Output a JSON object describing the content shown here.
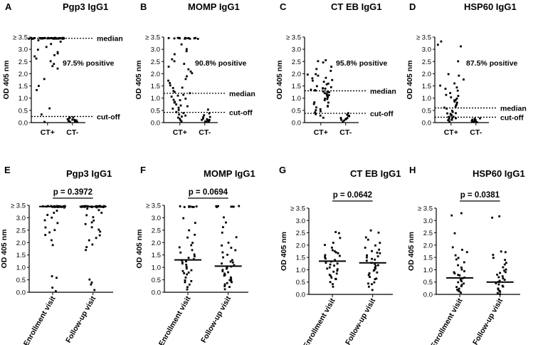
{
  "chart_data": [
    {
      "panel": "A",
      "title": "Pgp3 IgG1",
      "type": "scatter",
      "categories": [
        "CT+",
        "CT-"
      ],
      "ylabel": "OD 405 nm",
      "ylim": [
        0,
        3.5
      ],
      "ytick_labels": [
        "0.0",
        "0.5",
        "1.0",
        "1.5",
        "2.0",
        "2.5",
        "3.0",
        "≥ 3.5"
      ],
      "series": [
        {
          "name": "CT+",
          "values": [
            3.45,
            3.45,
            3.45,
            3.45,
            3.45,
            3.45,
            3.45,
            3.45,
            3.45,
            3.45,
            3.45,
            3.45,
            3.45,
            3.45,
            3.45,
            3.45,
            3.45,
            3.45,
            3.45,
            3.45,
            3.45,
            3.45,
            3.45,
            3.45,
            3.45,
            3.45,
            3.45,
            3.45,
            3.45,
            3.45,
            3.45,
            3.45,
            3.45,
            3.45,
            3.45,
            3.45,
            3.45,
            3.45,
            3.45,
            3.45,
            3.45,
            3.45,
            3.42,
            3.35,
            3.3,
            3.2,
            3.1,
            3.0,
            2.9,
            2.85,
            2.75,
            2.7,
            2.6,
            2.5,
            2.4,
            2.3,
            2.2,
            1.8,
            1.5,
            1.35,
            0.6,
            0.35,
            0.05
          ]
        },
        {
          "name": "CT-",
          "values": [
            0.22,
            0.2,
            0.18,
            0.15,
            0.12,
            0.1,
            0.09,
            0.08,
            0.07,
            0.06,
            0.05,
            0.05,
            0.04,
            0.03,
            0.02
          ]
        }
      ],
      "reference_lines": [
        {
          "label": "median",
          "value": 3.45
        },
        {
          "label": "cut-off",
          "value": 0.25
        }
      ],
      "annotations": [
        "97.5% positive"
      ]
    },
    {
      "panel": "B",
      "title": "MOMP IgG1",
      "type": "scatter",
      "categories": [
        "CT+",
        "CT-"
      ],
      "ylabel": "OD 405 nm",
      "ylim": [
        0,
        3.5
      ],
      "ytick_labels": [
        "0.0",
        "0.5",
        "1.0",
        "1.5",
        "2.0",
        "2.5",
        "3.0",
        "≥ 3.5"
      ],
      "series": [
        {
          "name": "CT+",
          "values": [
            3.45,
            3.45,
            3.45,
            3.45,
            3.45,
            3.45,
            3.45,
            3.45,
            3.45,
            3.45,
            3.45,
            3.45,
            3.45,
            3.45,
            3.2,
            3.0,
            2.9,
            2.8,
            2.6,
            2.5,
            2.4,
            2.3,
            2.2,
            2.1,
            2.0,
            1.9,
            1.8,
            1.7,
            1.6,
            1.5,
            1.45,
            1.4,
            1.3,
            1.25,
            1.2,
            1.15,
            1.1,
            1.05,
            1.0,
            0.95,
            0.9,
            0.85,
            0.8,
            0.75,
            0.7,
            0.65,
            0.6,
            0.55,
            0.5,
            0.45,
            0.4,
            0.35,
            0.3,
            0.25,
            0.2,
            0.15,
            0.1,
            0.05
          ]
        },
        {
          "name": "CT-",
          "values": [
            0.55,
            0.4,
            0.3,
            0.25,
            0.2,
            0.18,
            0.15,
            0.12,
            0.1,
            0.08,
            0.06,
            0.05,
            0.04,
            0.03,
            0.02
          ]
        }
      ],
      "reference_lines": [
        {
          "label": "median",
          "value": 1.2
        },
        {
          "label": "cut-off",
          "value": 0.42
        }
      ],
      "annotations": [
        "90.8% positive"
      ]
    },
    {
      "panel": "C",
      "title": "CT EB IgG1",
      "type": "scatter",
      "categories": [
        "CT+",
        "CT-"
      ],
      "ylabel": "OD 405 nm",
      "ylim": [
        0,
        3.5
      ],
      "ytick_labels": [
        "0.0",
        "0.5",
        "1.0",
        "1.5",
        "2.0",
        "2.5",
        "3.0",
        "≥ 3.5"
      ],
      "series": [
        {
          "name": "CT+",
          "values": [
            2.55,
            2.5,
            2.45,
            2.3,
            2.2,
            2.1,
            2.0,
            1.95,
            1.9,
            1.85,
            1.8,
            1.75,
            1.7,
            1.65,
            1.6,
            1.55,
            1.5,
            1.45,
            1.42,
            1.4,
            1.38,
            1.35,
            1.33,
            1.3,
            1.28,
            1.25,
            1.22,
            1.2,
            1.18,
            1.15,
            1.12,
            1.1,
            1.05,
            1.0,
            0.95,
            0.9,
            0.85,
            0.8,
            0.75,
            0.7,
            0.65,
            0.6,
            0.55,
            0.5,
            0.45,
            0.4,
            0.35,
            0.3,
            0.2
          ]
        },
        {
          "name": "CT-",
          "values": [
            0.38,
            0.35,
            0.3,
            0.28,
            0.25,
            0.2,
            0.18,
            0.15,
            0.12,
            0.1,
            0.08,
            0.05
          ]
        }
      ],
      "reference_lines": [
        {
          "label": "median",
          "value": 1.3
        },
        {
          "label": "cut-off",
          "value": 0.38
        }
      ],
      "annotations": [
        "95.8% positive"
      ]
    },
    {
      "panel": "D",
      "title": "HSP60 IgG1",
      "type": "scatter",
      "categories": [
        "CT+",
        "CT-"
      ],
      "ylabel": "OD 405 nm",
      "ylim": [
        0,
        3.5
      ],
      "ytick_labels": [
        "0.0",
        "0.5",
        "1.0",
        "1.5",
        "2.0",
        "2.5",
        "3.0",
        "≥ 3.5"
      ],
      "series": [
        {
          "name": "CT+",
          "values": [
            3.3,
            3.2,
            3.1,
            2.5,
            2.0,
            1.9,
            1.75,
            1.6,
            1.5,
            1.45,
            1.4,
            1.3,
            1.2,
            1.15,
            1.1,
            1.05,
            1.0,
            0.95,
            0.9,
            0.85,
            0.8,
            0.75,
            0.7,
            0.65,
            0.6,
            0.55,
            0.5,
            0.45,
            0.4,
            0.38,
            0.35,
            0.32,
            0.3,
            0.28,
            0.25,
            0.22,
            0.2,
            0.18,
            0.15,
            0.12,
            0.1,
            0.08,
            0.05
          ]
        },
        {
          "name": "CT-",
          "values": [
            0.18,
            0.15,
            0.12,
            0.1,
            0.09,
            0.08,
            0.06,
            0.05,
            0.04,
            0.03,
            0.02,
            0.02
          ]
        }
      ],
      "reference_lines": [
        {
          "label": "median",
          "value": 0.6
        },
        {
          "label": "cut-off",
          "value": 0.22
        }
      ],
      "annotations": [
        "87.5% positive"
      ]
    },
    {
      "panel": "E",
      "title": "Pgp3 IgG1",
      "type": "scatter",
      "categories": [
        "Enrollment visit",
        "Follow-up visit"
      ],
      "ylabel": "OD 405 nm",
      "ylim": [
        0,
        3.5
      ],
      "ytick_labels": [
        "0.0",
        "0.5",
        "1.0",
        "1.5",
        "2.0",
        "2.5",
        "3.0",
        "≥ 3.5"
      ],
      "series": [
        {
          "name": "Enrollment visit",
          "values": [
            3.45,
            3.45,
            3.45,
            3.45,
            3.45,
            3.45,
            3.45,
            3.45,
            3.45,
            3.45,
            3.45,
            3.45,
            3.45,
            3.45,
            3.45,
            3.45,
            3.45,
            3.45,
            3.45,
            3.45,
            3.45,
            3.45,
            3.45,
            3.45,
            3.4,
            3.3,
            3.2,
            3.1,
            3.0,
            2.9,
            2.8,
            2.6,
            2.5,
            2.4,
            2.3,
            2.1,
            1.9,
            0.65,
            0.6,
            0.2,
            0.05
          ],
          "median": 3.45
        },
        {
          "name": "Follow-up visit",
          "values": [
            3.45,
            3.45,
            3.45,
            3.45,
            3.45,
            3.45,
            3.45,
            3.45,
            3.45,
            3.45,
            3.45,
            3.45,
            3.45,
            3.45,
            3.45,
            3.45,
            3.45,
            3.45,
            3.45,
            3.45,
            3.45,
            3.45,
            3.45,
            3.45,
            3.45,
            3.45,
            3.45,
            3.45,
            3.4,
            3.35,
            3.3,
            3.2,
            3.1,
            3.0,
            2.9,
            2.8,
            2.75,
            2.6,
            2.5,
            2.45,
            2.3,
            2.2,
            2.1,
            1.9,
            1.8,
            1.7,
            0.5,
            0.4,
            0.3,
            0.1
          ],
          "median": 3.45
        }
      ],
      "annotations": [
        "p = 0.3972"
      ]
    },
    {
      "panel": "F",
      "title": "MOMP IgG1",
      "type": "scatter",
      "categories": [
        "Enrollment visit",
        "Follow-up visit"
      ],
      "ylabel": "OD 405 nm",
      "ylim": [
        0,
        3.5
      ],
      "ytick_labels": [
        "0.0",
        "0.5",
        "1.0",
        "1.5",
        "2.0",
        "2.5",
        "3.0",
        "≥ 3.5"
      ],
      "series": [
        {
          "name": "Enrollment visit",
          "values": [
            3.45,
            3.45,
            3.45,
            3.45,
            3.45,
            3.45,
            3.45,
            3.45,
            3.0,
            2.8,
            2.5,
            2.3,
            2.2,
            2.0,
            1.9,
            1.8,
            1.7,
            1.6,
            1.5,
            1.45,
            1.4,
            1.35,
            1.3,
            1.25,
            1.2,
            1.15,
            1.1,
            1.0,
            0.95,
            0.9,
            0.85,
            0.8,
            0.75,
            0.7,
            0.6,
            0.5,
            0.45,
            0.4,
            0.3,
            0.2,
            0.1
          ],
          "median": 1.3
        },
        {
          "name": "Follow-up visit",
          "values": [
            3.45,
            3.45,
            3.45,
            3.45,
            3.45,
            3.45,
            3.45,
            3.0,
            2.8,
            2.6,
            2.4,
            2.2,
            2.0,
            1.9,
            1.8,
            1.7,
            1.6,
            1.5,
            1.4,
            1.3,
            1.25,
            1.2,
            1.15,
            1.1,
            1.05,
            1.0,
            0.95,
            0.9,
            0.85,
            0.8,
            0.75,
            0.7,
            0.65,
            0.6,
            0.55,
            0.5,
            0.45,
            0.4,
            0.35,
            0.3,
            0.25,
            0.2,
            0.1
          ],
          "median": 1.05
        }
      ],
      "annotations": [
        "p = 0.0694"
      ]
    },
    {
      "panel": "G",
      "title": "CT EB IgG1",
      "type": "scatter",
      "categories": [
        "Enrollment visit",
        "Follow-up visit"
      ],
      "ylabel": "OD 405 nm",
      "ylim": [
        0,
        3.5
      ],
      "ytick_labels": [
        "0.0",
        "0.5",
        "1.0",
        "1.5",
        "2.0",
        "2.5",
        "3.0",
        "≥ 3.5"
      ],
      "series": [
        {
          "name": "Enrollment visit",
          "values": [
            2.55,
            2.5,
            2.3,
            2.1,
            2.0,
            1.9,
            1.8,
            1.75,
            1.7,
            1.65,
            1.6,
            1.55,
            1.5,
            1.45,
            1.4,
            1.35,
            1.3,
            1.25,
            1.2,
            1.15,
            1.1,
            1.05,
            1.0,
            0.95,
            0.9,
            0.85,
            0.8,
            0.75,
            0.7,
            0.65,
            0.6,
            0.5,
            0.4,
            0.3
          ],
          "median": 1.35
        },
        {
          "name": "Follow-up visit",
          "values": [
            2.6,
            2.5,
            2.3,
            2.2,
            2.1,
            2.0,
            1.9,
            1.8,
            1.75,
            1.7,
            1.65,
            1.6,
            1.55,
            1.5,
            1.45,
            1.4,
            1.35,
            1.3,
            1.25,
            1.2,
            1.15,
            1.1,
            1.05,
            1.0,
            0.95,
            0.9,
            0.85,
            0.8,
            0.7,
            0.65,
            0.6,
            0.5,
            0.45,
            0.4,
            0.3,
            0.2
          ],
          "median": 1.28
        }
      ],
      "annotations": [
        "p = 0.0642"
      ]
    },
    {
      "panel": "H",
      "title": "HSP60 IgG1",
      "type": "scatter",
      "categories": [
        "Enrollment visit",
        "Follow-up visit"
      ],
      "ylabel": "OD 405 nm",
      "ylim": [
        0,
        3.5
      ],
      "ytick_labels": [
        "0.0",
        "0.5",
        "1.0",
        "1.5",
        "2.0",
        "2.5",
        "3.0",
        "≥ 3.5"
      ],
      "series": [
        {
          "name": "Enrollment visit",
          "values": [
            3.3,
            3.2,
            2.5,
            1.9,
            1.8,
            1.7,
            1.6,
            1.5,
            1.4,
            1.3,
            1.2,
            1.1,
            1.0,
            0.95,
            0.9,
            0.85,
            0.8,
            0.75,
            0.7,
            0.65,
            0.6,
            0.55,
            0.5,
            0.45,
            0.4,
            0.35,
            0.3,
            0.25,
            0.2,
            0.15,
            0.1,
            0.05
          ],
          "median": 0.67
        },
        {
          "name": "Follow-up visit",
          "values": [
            3.15,
            3.1,
            1.75,
            1.7,
            1.6,
            1.5,
            1.4,
            1.3,
            1.2,
            1.1,
            1.0,
            0.95,
            0.9,
            0.85,
            0.8,
            0.75,
            0.7,
            0.65,
            0.6,
            0.55,
            0.5,
            0.45,
            0.4,
            0.35,
            0.3,
            0.25,
            0.2,
            0.15,
            0.1,
            0.05,
            0.02
          ],
          "median": 0.5
        }
      ],
      "annotations": [
        "p = 0.0381"
      ]
    }
  ]
}
